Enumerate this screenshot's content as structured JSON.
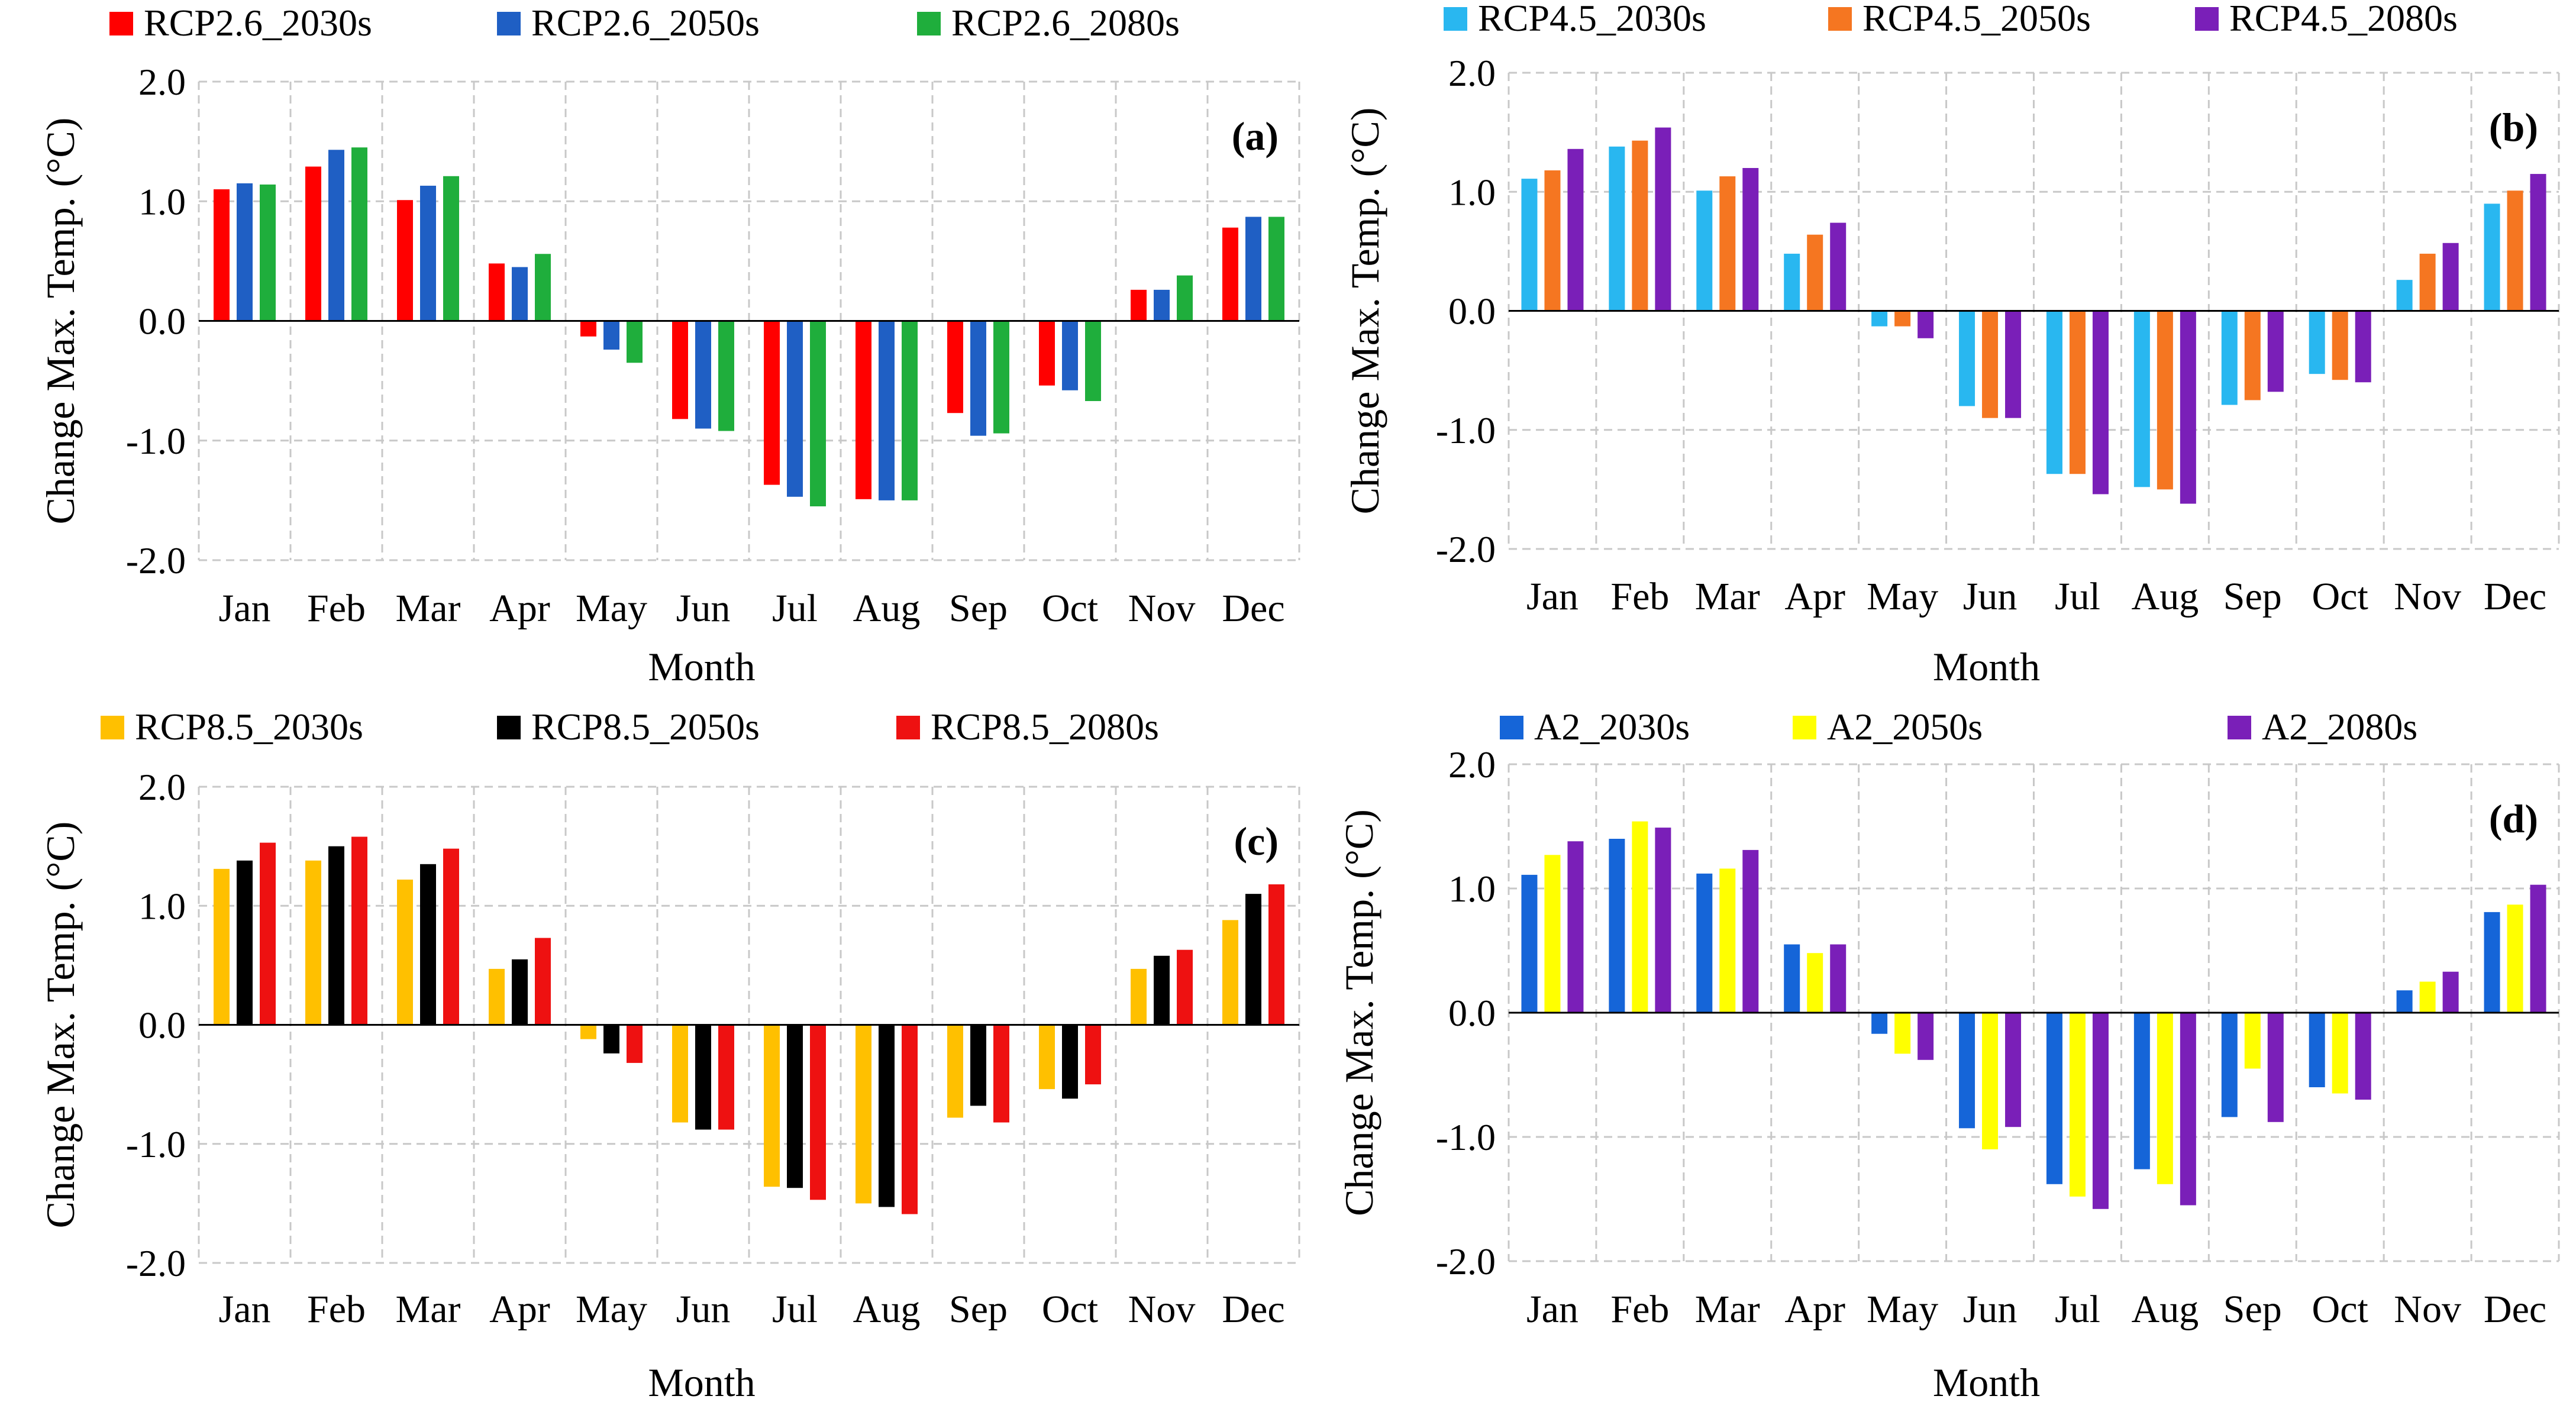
{
  "chart_data": [
    {
      "type": "bar",
      "panel_label": "(a)",
      "xlabel": "Month",
      "ylabel": "Change Max. Temp. (°C)",
      "ylim": [
        -2.0,
        2.0
      ],
      "yticks": [
        "2.0",
        "1.0",
        "0.0",
        "-1.0",
        "-2.0"
      ],
      "grid": true,
      "legend_position": "top",
      "categories": [
        "Jan",
        "Feb",
        "Mar",
        "Apr",
        "May",
        "Jun",
        "Jul",
        "Aug",
        "Sep",
        "Oct",
        "Nov",
        "Dec"
      ],
      "series": [
        {
          "name": "RCP2.6_2030s",
          "color": "#ff0000",
          "values": [
            1.1,
            1.29,
            1.01,
            0.48,
            -0.13,
            -0.82,
            -1.37,
            -1.49,
            -0.77,
            -0.54,
            0.26,
            0.78
          ]
        },
        {
          "name": "RCP2.6_2050s",
          "color": "#1f5fc4",
          "values": [
            1.15,
            1.43,
            1.13,
            0.45,
            -0.24,
            -0.9,
            -1.47,
            -1.5,
            -0.96,
            -0.58,
            0.26,
            0.87
          ]
        },
        {
          "name": "RCP2.6_2080s",
          "color": "#1fae3c",
          "values": [
            1.14,
            1.45,
            1.21,
            0.56,
            -0.35,
            -0.92,
            -1.55,
            -1.5,
            -0.94,
            -0.67,
            0.38,
            0.87
          ]
        }
      ]
    },
    {
      "type": "bar",
      "panel_label": "(b)",
      "xlabel": "Month",
      "ylabel": "Change Max. Temp. (°C)",
      "ylim": [
        -2.0,
        2.0
      ],
      "yticks": [
        "2.0",
        "1.0",
        "0.0",
        "-1.0",
        "-2.0"
      ],
      "grid": true,
      "legend_position": "top",
      "categories": [
        "Jan",
        "Feb",
        "Mar",
        "Apr",
        "May",
        "Jun",
        "Jul",
        "Aug",
        "Sep",
        "Oct",
        "Nov",
        "Dec"
      ],
      "series": [
        {
          "name": "RCP4.5_2030s",
          "color": "#29b7f0",
          "values": [
            1.11,
            1.38,
            1.01,
            0.48,
            -0.13,
            -0.8,
            -1.37,
            -1.48,
            -0.79,
            -0.53,
            0.26,
            0.9
          ]
        },
        {
          "name": "RCP4.5_2050s",
          "color": "#f57621",
          "values": [
            1.18,
            1.43,
            1.13,
            0.64,
            -0.13,
            -0.9,
            -1.37,
            -1.5,
            -0.75,
            -0.58,
            0.48,
            1.01
          ]
        },
        {
          "name": "RCP4.5_2080s",
          "color": "#7a1fb8",
          "values": [
            1.36,
            1.54,
            1.2,
            0.74,
            -0.23,
            -0.9,
            -1.54,
            -1.62,
            -0.68,
            -0.6,
            0.57,
            1.15
          ]
        }
      ]
    },
    {
      "type": "bar",
      "panel_label": "(c)",
      "xlabel": "Month",
      "ylabel": "Change Max. Temp. (°C)",
      "ylim": [
        -2.0,
        2.0
      ],
      "yticks": [
        "2.0",
        "1.0",
        "0.0",
        "-1.0",
        "-2.0"
      ],
      "grid": true,
      "legend_position": "top",
      "categories": [
        "Jan",
        "Feb",
        "Mar",
        "Apr",
        "May",
        "Jun",
        "Jul",
        "Aug",
        "Sep",
        "Oct",
        "Nov",
        "Dec"
      ],
      "series": [
        {
          "name": "RCP8.5_2030s",
          "color": "#ffc000",
          "values": [
            1.31,
            1.38,
            1.22,
            0.47,
            -0.12,
            -0.82,
            -1.36,
            -1.5,
            -0.78,
            -0.54,
            0.47,
            0.88
          ]
        },
        {
          "name": "RCP8.5_2050s",
          "color": "#000000",
          "values": [
            1.38,
            1.5,
            1.35,
            0.55,
            -0.24,
            -0.88,
            -1.37,
            -1.53,
            -0.68,
            -0.62,
            0.58,
            1.1
          ]
        },
        {
          "name": "RCP8.5_2080s",
          "color": "#ee1111",
          "values": [
            1.53,
            1.58,
            1.48,
            0.73,
            -0.32,
            -0.88,
            -1.47,
            -1.59,
            -0.82,
            -0.5,
            0.63,
            1.18
          ]
        }
      ]
    },
    {
      "type": "bar",
      "panel_label": "(d)",
      "xlabel": "Month",
      "ylabel": "Change Max. Temp. (°C)",
      "ylim": [
        -2.0,
        2.0
      ],
      "yticks": [
        "2.0",
        "1.0",
        "0.0",
        "-1.0",
        "-2.0"
      ],
      "grid": true,
      "legend_position": "top",
      "categories": [
        "Jan",
        "Feb",
        "Mar",
        "Apr",
        "May",
        "Jun",
        "Jul",
        "Aug",
        "Sep",
        "Oct",
        "Nov",
        "Dec"
      ],
      "series": [
        {
          "name": "A2_2030s",
          "color": "#1565d8",
          "values": [
            1.11,
            1.4,
            1.12,
            0.55,
            -0.17,
            -0.93,
            -1.38,
            -1.26,
            -0.84,
            -0.6,
            0.18,
            0.81
          ]
        },
        {
          "name": "A2_2050s",
          "color": "#ffff00",
          "values": [
            1.27,
            1.54,
            1.16,
            0.48,
            -0.33,
            -1.1,
            -1.48,
            -1.38,
            -0.45,
            -0.65,
            0.25,
            0.87
          ]
        },
        {
          "name": "A2_2080s",
          "color": "#7a1fb8",
          "values": [
            1.38,
            1.49,
            1.31,
            0.55,
            -0.38,
            -0.92,
            -1.58,
            -1.55,
            -0.88,
            -0.7,
            0.33,
            1.03
          ]
        }
      ]
    }
  ]
}
